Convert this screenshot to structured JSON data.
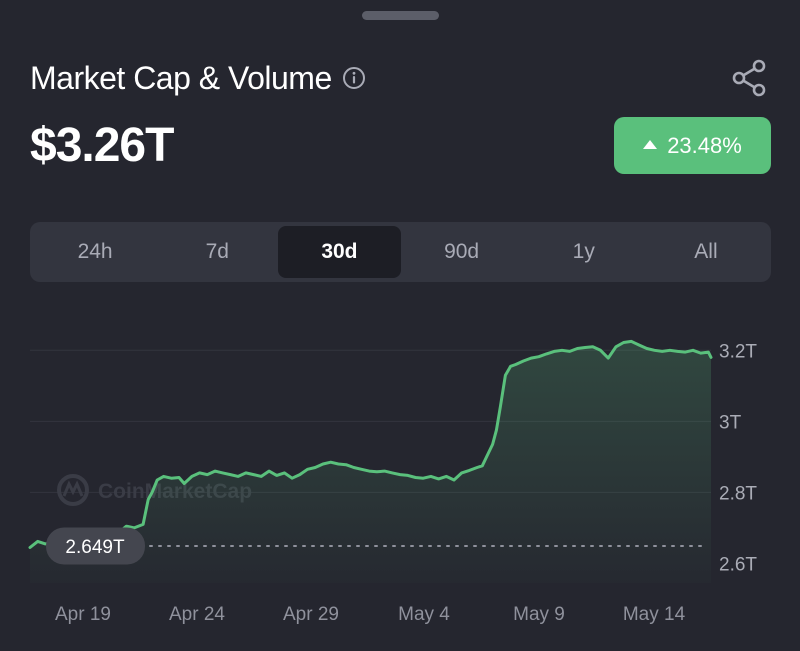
{
  "header": {
    "title": "Market Cap & Volume",
    "value": "$3.26T",
    "change": "23.48%",
    "accent": "#5ac07c",
    "icons": {
      "info": "info-icon",
      "share": "share-icon",
      "change": "triangle-up-icon"
    }
  },
  "tabs": [
    {
      "label": "24h",
      "active": false
    },
    {
      "label": "7d",
      "active": false
    },
    {
      "label": "30d",
      "active": true
    },
    {
      "label": "90d",
      "active": false
    },
    {
      "label": "1y",
      "active": false
    },
    {
      "label": "All",
      "active": false
    }
  ],
  "watermark": "CoinMarketCap",
  "chart_data": {
    "type": "area",
    "x_tick_labels": [
      "Apr 19",
      "Apr 24",
      "Apr 29",
      "May 4",
      "May 9",
      "May 14"
    ],
    "y_tick_labels": [
      "2.6T",
      "2.8T",
      "3T",
      "3.2T"
    ],
    "y_ticks": [
      2.6,
      2.8,
      3.0,
      3.2
    ],
    "ylim": [
      2.545,
      3.305
    ],
    "start_label": "2.649T",
    "start_value": 2.649,
    "line_color": "#5ac07c",
    "grid": true,
    "series": [
      {
        "points": [
          [
            0.0,
            2.645
          ],
          [
            0.6,
            2.662
          ],
          [
            1.2,
            2.655
          ],
          [
            1.8,
            2.658
          ],
          [
            2.4,
            2.665
          ],
          [
            3.0,
            2.655
          ],
          [
            3.6,
            2.663
          ],
          [
            4.2,
            2.66
          ],
          [
            4.8,
            2.672
          ],
          [
            5.4,
            2.665
          ],
          [
            6.0,
            2.655
          ],
          [
            6.6,
            2.655
          ],
          [
            7.0,
            2.69
          ],
          [
            7.5,
            2.705
          ],
          [
            8.1,
            2.7
          ],
          [
            8.8,
            2.71
          ],
          [
            9.2,
            2.78
          ],
          [
            9.5,
            2.8
          ],
          [
            9.9,
            2.835
          ],
          [
            10.4,
            2.845
          ],
          [
            11.0,
            2.84
          ],
          [
            11.6,
            2.842
          ],
          [
            12.0,
            2.825
          ],
          [
            12.6,
            2.845
          ],
          [
            13.2,
            2.855
          ],
          [
            13.8,
            2.85
          ],
          [
            14.4,
            2.86
          ],
          [
            15.0,
            2.855
          ],
          [
            15.6,
            2.85
          ],
          [
            16.2,
            2.845
          ],
          [
            16.8,
            2.855
          ],
          [
            17.4,
            2.85
          ],
          [
            18.0,
            2.845
          ],
          [
            18.6,
            2.86
          ],
          [
            19.2,
            2.848
          ],
          [
            19.8,
            2.855
          ],
          [
            20.4,
            2.84
          ],
          [
            21.0,
            2.85
          ],
          [
            21.6,
            2.865
          ],
          [
            22.2,
            2.87
          ],
          [
            22.8,
            2.88
          ],
          [
            23.4,
            2.885
          ],
          [
            24.0,
            2.88
          ],
          [
            24.6,
            2.878
          ],
          [
            25.2,
            2.87
          ],
          [
            25.8,
            2.865
          ],
          [
            26.4,
            2.86
          ],
          [
            27.0,
            2.858
          ],
          [
            27.6,
            2.86
          ],
          [
            28.2,
            2.855
          ],
          [
            28.8,
            2.85
          ],
          [
            29.4,
            2.848
          ],
          [
            30.0,
            2.842
          ],
          [
            30.6,
            2.84
          ],
          [
            31.2,
            2.845
          ],
          [
            31.8,
            2.838
          ],
          [
            32.4,
            2.845
          ],
          [
            33.0,
            2.835
          ],
          [
            33.6,
            2.855
          ],
          [
            34.2,
            2.862
          ],
          [
            34.8,
            2.87
          ],
          [
            35.2,
            2.875
          ],
          [
            35.6,
            2.905
          ],
          [
            36.0,
            2.935
          ],
          [
            36.3,
            2.975
          ],
          [
            36.6,
            3.04
          ],
          [
            37.0,
            3.13
          ],
          [
            37.4,
            3.155
          ],
          [
            37.8,
            3.16
          ],
          [
            38.4,
            3.17
          ],
          [
            39.0,
            3.178
          ],
          [
            39.6,
            3.182
          ],
          [
            40.2,
            3.19
          ],
          [
            40.8,
            3.197
          ],
          [
            41.4,
            3.2
          ],
          [
            42.0,
            3.197
          ],
          [
            42.6,
            3.205
          ],
          [
            43.2,
            3.208
          ],
          [
            43.8,
            3.21
          ],
          [
            44.4,
            3.2
          ],
          [
            45.0,
            3.178
          ],
          [
            45.6,
            3.21
          ],
          [
            46.2,
            3.222
          ],
          [
            46.8,
            3.225
          ],
          [
            47.4,
            3.215
          ],
          [
            48.0,
            3.205
          ],
          [
            48.6,
            3.2
          ],
          [
            49.2,
            3.197
          ],
          [
            49.8,
            3.2
          ],
          [
            50.4,
            3.197
          ],
          [
            51.0,
            3.195
          ],
          [
            51.6,
            3.2
          ],
          [
            52.2,
            3.192
          ],
          [
            52.8,
            3.195
          ],
          [
            53.0,
            3.18
          ]
        ]
      }
    ]
  }
}
